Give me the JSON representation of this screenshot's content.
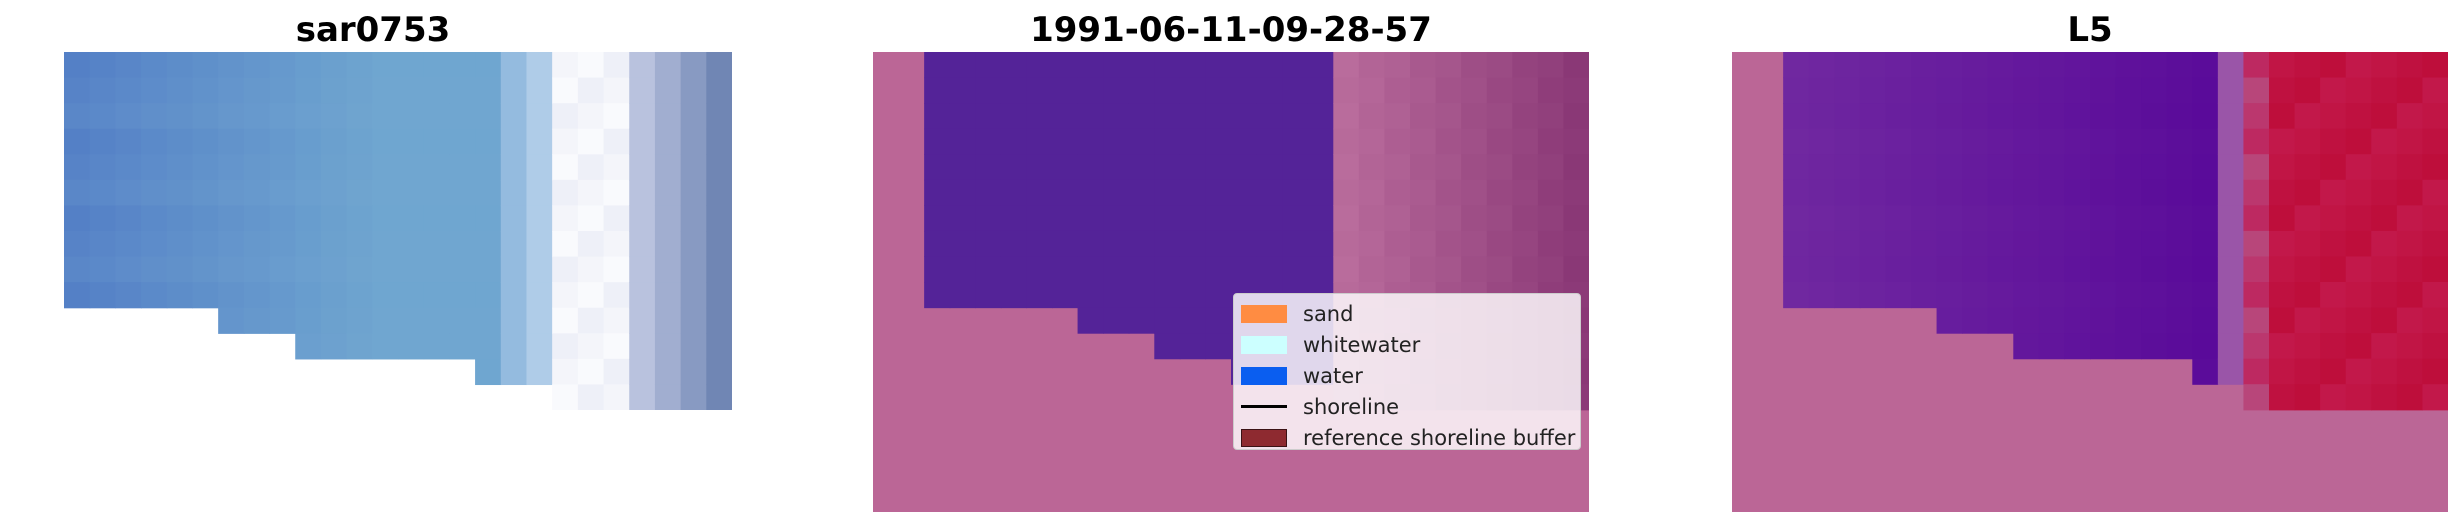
{
  "panels": [
    {
      "title": "sar0753"
    },
    {
      "title": "1991-06-11-09-28-57"
    },
    {
      "title": "L5"
    }
  ],
  "legend": {
    "items": [
      {
        "label": "sand",
        "color": "#ff8c42",
        "kind": "patch"
      },
      {
        "label": "whitewater",
        "color": "#ccffff",
        "kind": "patch"
      },
      {
        "label": "water",
        "color": "#0a5ef0",
        "kind": "patch"
      },
      {
        "label": "shoreline",
        "color": "#000000",
        "kind": "line"
      },
      {
        "label": "reference shoreline buffer",
        "color": "#8e2a30",
        "kind": "patch"
      }
    ]
  },
  "colors": {
    "background_nodata": "#ffffff",
    "overlay_pink": "#bb6696",
    "overlay_purple": "#542398",
    "overlay_red": "#bc0a36"
  }
}
